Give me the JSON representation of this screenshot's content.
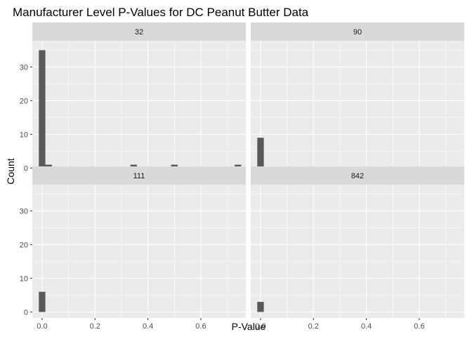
{
  "chart_data": {
    "type": "bar",
    "title": "Manufacturer Level P-Values for DC Peanut Butter Data",
    "xlabel": "P-Value",
    "ylabel": "Count",
    "xlim": [
      -0.037,
      0.77
    ],
    "ylim": [
      -1.8,
      37.8
    ],
    "x_ticks": [
      0.0,
      0.2,
      0.4,
      0.6
    ],
    "x_tick_labels": [
      "0.0",
      "0.2",
      "0.4",
      "0.6"
    ],
    "y_ticks": [
      0,
      10,
      20,
      30
    ],
    "y_tick_labels": [
      "0",
      "10",
      "20",
      "30"
    ],
    "bin_width": 0.0247,
    "grid": true,
    "panels": [
      {
        "label": "32",
        "bars": [
          {
            "x": 0.0,
            "count": 35
          },
          {
            "x": 0.0247,
            "count": 1
          },
          {
            "x": 0.346,
            "count": 1
          },
          {
            "x": 0.5,
            "count": 1
          },
          {
            "x": 0.74,
            "count": 1
          }
        ]
      },
      {
        "label": "90",
        "bars": [
          {
            "x": 0.0,
            "count": 9
          }
        ]
      },
      {
        "label": "111",
        "bars": [
          {
            "x": 0.0,
            "count": 6
          }
        ]
      },
      {
        "label": "842",
        "bars": [
          {
            "x": 0.0,
            "count": 3
          }
        ]
      }
    ]
  },
  "colors": {
    "panel_background": "#ebebeb",
    "strip_background": "#d9d9d9",
    "grid_major": "#ffffff",
    "bar_fill": "#595959",
    "tick_mark": "#333333"
  }
}
